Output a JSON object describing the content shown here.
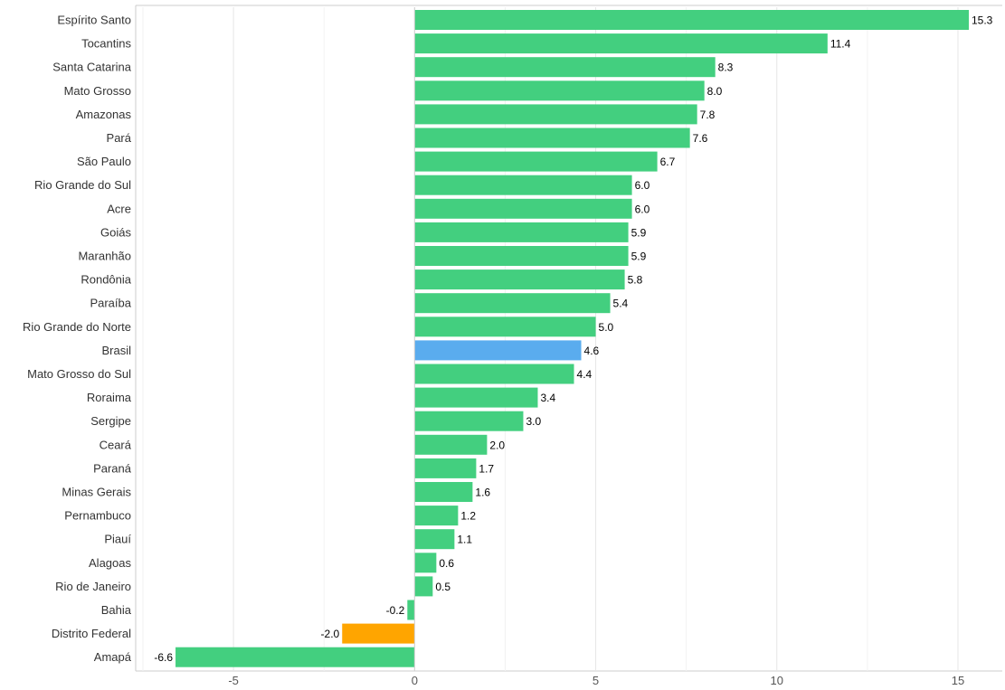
{
  "chart_data": {
    "type": "bar",
    "orientation": "horizontal",
    "categories": [
      "Espírito Santo",
      "Tocantins",
      "Santa Catarina",
      "Mato Grosso",
      "Amazonas",
      "Pará",
      "São Paulo",
      "Rio Grande do Sul",
      "Acre",
      "Goiás",
      "Maranhão",
      "Rondônia",
      "Paraíba",
      "Rio Grande do Norte",
      "Brasil",
      "Mato Grosso do Sul",
      "Roraima",
      "Sergipe",
      "Ceará",
      "Paraná",
      "Minas Gerais",
      "Pernambuco",
      "Piauí",
      "Alagoas",
      "Rio de Janeiro",
      "Bahia",
      "Distrito Federal",
      "Amapá"
    ],
    "values": [
      15.3,
      11.4,
      8.3,
      8.0,
      7.8,
      7.6,
      6.7,
      6.0,
      6.0,
      5.9,
      5.9,
      5.8,
      5.4,
      5.0,
      4.6,
      4.4,
      3.4,
      3.0,
      2.0,
      1.7,
      1.6,
      1.2,
      1.1,
      0.6,
      0.5,
      -0.2,
      -2.0,
      -6.6
    ],
    "value_labels": [
      "15.3",
      "11.4",
      "8.3",
      "8.0",
      "7.8",
      "7.6",
      "6.7",
      "6.0",
      "6.0",
      "5.9",
      "5.9",
      "5.8",
      "5.4",
      "5.0",
      "4.6",
      "4.4",
      "3.4",
      "3.0",
      "2.0",
      "1.7",
      "1.6",
      "1.2",
      "1.1",
      "0.6",
      "0.5",
      "-0.2",
      "-2.0",
      "-6.6"
    ],
    "xlim": [
      -7.7,
      15.6
    ],
    "xticks": [
      -5,
      0,
      5,
      10,
      15
    ],
    "xtick_labels": [
      "-5",
      "0",
      "5",
      "10",
      "15"
    ],
    "grid": true,
    "colors": {
      "default": "#43cf7f",
      "highlight": "#5aacee",
      "lowest_negative": "#ffa500",
      "grid": "#e6e6e6",
      "axis": "#cccccc"
    },
    "highlight_category": "Brasil",
    "orange_category": "Distrito Federal"
  }
}
